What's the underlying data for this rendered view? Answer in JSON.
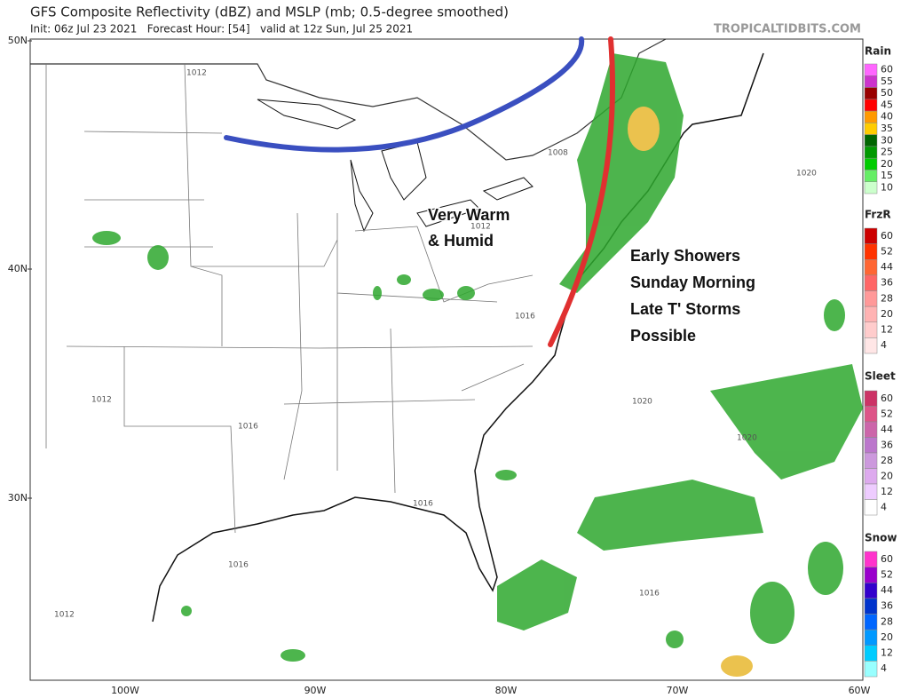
{
  "header": {
    "title": "GFS Composite Reflectivity (dBZ) and MSLP (mb; 0.5-degree smoothed)",
    "subtitle": "Init: 06z Jul 23 2021   Forecast Hour: [54]   valid at 12z Sun, Jul 25 2021",
    "credit": "TROPICALTIDBITS.COM"
  },
  "map": {
    "lat_labels": [
      "50N",
      "40N",
      "30N"
    ],
    "lon_labels": [
      "100W",
      "90W",
      "80W",
      "70W",
      "60W"
    ],
    "isobar_labels": [
      "1012",
      "1008",
      "1012",
      "1016",
      "1020",
      "1012",
      "1016",
      "1020",
      "1020",
      "1016",
      "1016",
      "1016",
      "1012"
    ],
    "annotations": [
      {
        "lines": [
          "Very Warm",
          "& Humid"
        ]
      },
      {
        "lines": [
          "Early Showers",
          "Sunday Morning",
          "Late T' Storms",
          "Possible"
        ]
      }
    ]
  },
  "legends": [
    {
      "title": "Rain",
      "labels": [
        60,
        55,
        50,
        45,
        40,
        35,
        30,
        25,
        20,
        15,
        10
      ],
      "colors": [
        "#ff66ff",
        "#cc33cc",
        "#990000",
        "#ff0000",
        "#ff9900",
        "#ffcc00",
        "#006600",
        "#009900",
        "#00cc00",
        "#66ee66",
        "#ccffcc"
      ]
    },
    {
      "title": "FrzR",
      "labels": [
        60,
        52,
        44,
        36,
        28,
        20,
        12,
        4
      ],
      "colors": [
        "#cc0000",
        "#ff3300",
        "#ff6633",
        "#ff6666",
        "#ff9999",
        "#ffb3b3",
        "#ffcccc",
        "#ffe6e6"
      ]
    },
    {
      "title": "Sleet",
      "labels": [
        60,
        52,
        44,
        36,
        28,
        20,
        12,
        4
      ],
      "colors": [
        "#cc3366",
        "#dd5588",
        "#cc66aa",
        "#bb77cc",
        "#cc99dd",
        "#ddaaee",
        "#eeccff",
        "#ffffff"
      ]
    },
    {
      "title": "Snow",
      "labels": [
        60,
        52,
        44,
        36,
        28,
        20,
        12,
        4
      ],
      "colors": [
        "#ff33cc",
        "#9900cc",
        "#3300cc",
        "#0033cc",
        "#0066ff",
        "#0099ff",
        "#00ccff",
        "#99ffff"
      ]
    }
  ]
}
